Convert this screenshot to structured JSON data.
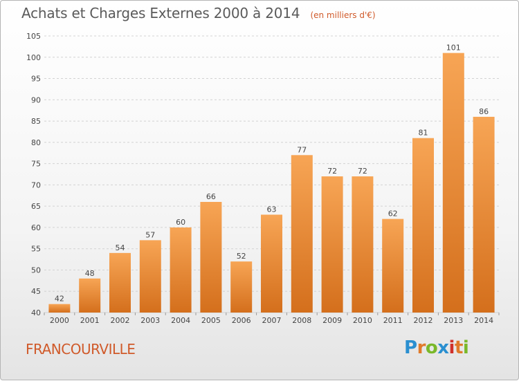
{
  "title": "Achats et Charges Externes 2000 à 2014",
  "subtitle": "(en milliers d'€)",
  "place": "FRANCOURVILLE",
  "logo": {
    "text": "Proxiti",
    "letters": [
      "P",
      "r",
      "o",
      "x",
      "i",
      "t",
      "i"
    ],
    "colors": [
      "#2a8fd0",
      "#e07a2a",
      "#7ab82a",
      "#2a8fd0",
      "#d0302a",
      "#e07a2a",
      "#7ab82a"
    ]
  },
  "colors": {
    "bar_light": "#f7a555",
    "bar_dark": "#d46f1c",
    "grid": "#d2d2d2",
    "axis_text": "#444444",
    "label_text": "#444444"
  },
  "chart_data": {
    "type": "bar",
    "categories": [
      "2000",
      "2001",
      "2002",
      "2003",
      "2004",
      "2005",
      "2006",
      "2007",
      "2008",
      "2009",
      "2010",
      "2011",
      "2012",
      "2013",
      "2014"
    ],
    "values": [
      42,
      48,
      54,
      57,
      60,
      66,
      52,
      63,
      77,
      72,
      72,
      62,
      81,
      101,
      86
    ],
    "yticks": [
      40,
      45,
      50,
      55,
      60,
      65,
      70,
      75,
      80,
      85,
      90,
      95,
      100,
      105
    ],
    "ylim": [
      40,
      105
    ],
    "grid": true,
    "title": "Achats et Charges Externes 2000 à 2014",
    "xlabel": "",
    "ylabel": ""
  }
}
